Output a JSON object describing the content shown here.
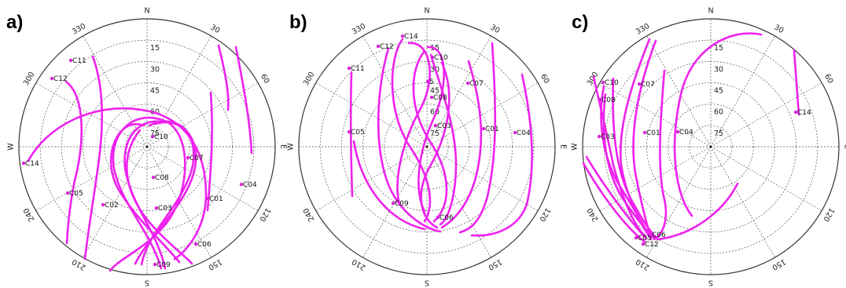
{
  "panels": [
    {
      "label": "a)",
      "azimuth_labels": [
        "N",
        "30",
        "60",
        "E",
        "120",
        "150",
        "S",
        "210",
        "240",
        "W",
        "300",
        "330"
      ],
      "elevation_labels": [
        "15",
        "30",
        "45",
        "60",
        "75"
      ],
      "satellites": [
        "C11",
        "C12",
        "C14",
        "C05",
        "C10",
        "C07",
        "C08",
        "C04",
        "C01",
        "C02",
        "C03",
        "C06",
        "C09"
      ],
      "track_color": "#ee22ee"
    },
    {
      "label": "b)",
      "azimuth_labels": [
        "N",
        "30",
        "60",
        "E",
        "120",
        "150",
        "S",
        "210",
        "240",
        "W",
        "300",
        "330"
      ],
      "elevation_labels": [
        "15",
        "30",
        "45",
        "60",
        "75"
      ],
      "satellites": [
        "C14",
        "C12",
        "C10",
        "C11",
        "C07",
        "5",
        "C08",
        "C03",
        "C01",
        "C04",
        "C05",
        "C09",
        "C06"
      ],
      "track_color": "#ee22ee"
    },
    {
      "label": "c)",
      "azimuth_labels": [
        "N",
        "30",
        "60",
        "E",
        "120",
        "150",
        "S",
        "210",
        "240",
        "W",
        "300",
        "330"
      ],
      "elevation_labels": [
        "15",
        "30",
        "45",
        "60",
        "75"
      ],
      "satellites": [
        "C10",
        "C07",
        "C08",
        "C03",
        "C01",
        "C04",
        "C14",
        "C05",
        "C06",
        "C12"
      ],
      "track_color": "#ee22ee"
    }
  ]
}
